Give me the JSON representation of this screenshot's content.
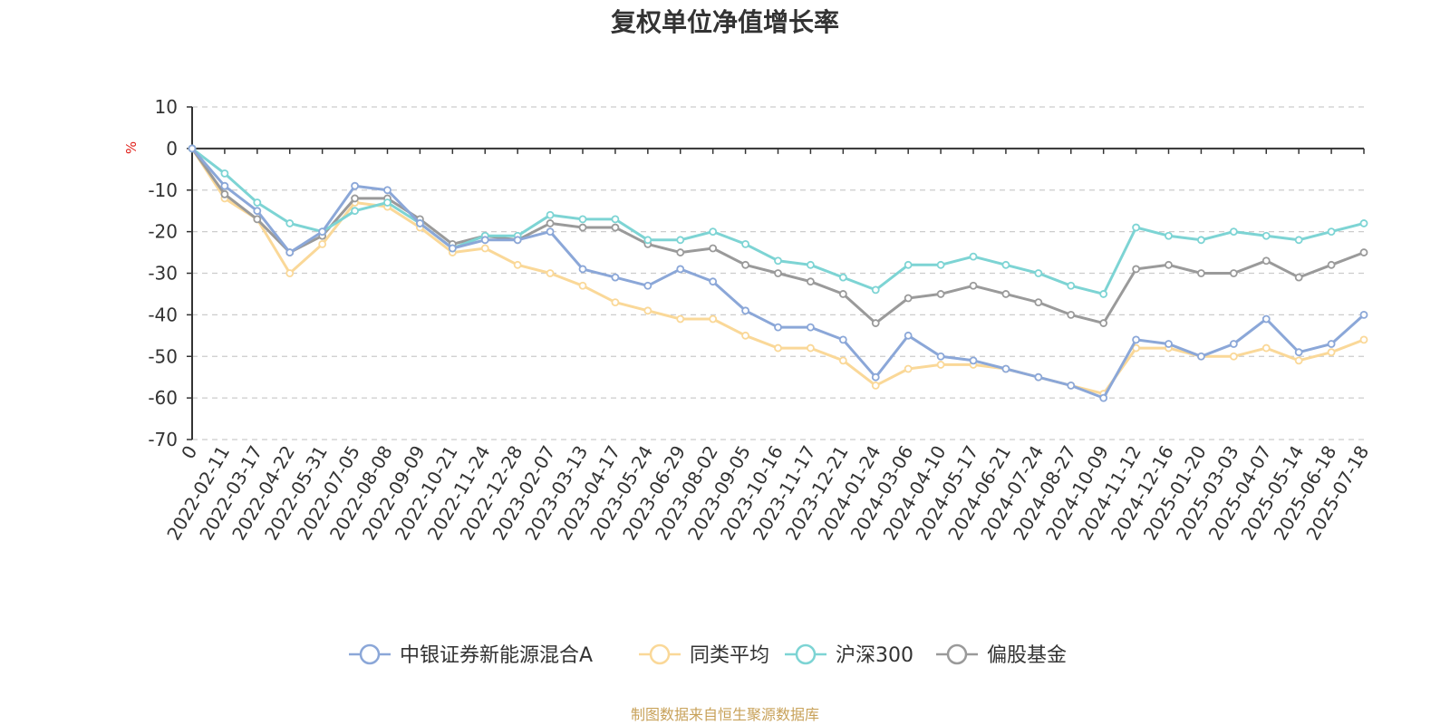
{
  "colors": {
    "fund": "#8ba7d8",
    "category_avg": "#fad898",
    "hs300": "#7dd4d4",
    "equity_fund": "#9a9a9a",
    "axis": "#333333",
    "grid": "#cccccc",
    "unit": "#e0201a",
    "source": "#c8a25a"
  },
  "source_note": "制图数据来自恒生聚源数据库",
  "chart_data": {
    "type": "line",
    "title": "复权单位净值增长率",
    "ylabel": "%",
    "ylim": [
      -70,
      10
    ],
    "yticks": [
      10,
      0,
      -10,
      -20,
      -30,
      -40,
      -50,
      -60,
      -70
    ],
    "grid": true,
    "legend_position": "bottom",
    "x_ticks": [
      "0",
      "2022-02-11",
      "2022-03-17",
      "2022-04-22",
      "2022-05-31",
      "2022-07-05",
      "2022-08-08",
      "2022-09-09",
      "2022-10-21",
      "2022-11-24",
      "2022-12-28",
      "2023-02-07",
      "2023-03-13",
      "2023-04-17",
      "2023-05-24",
      "2023-06-29",
      "2023-08-02",
      "2023-09-05",
      "2023-10-16",
      "2023-11-17",
      "2023-12-21",
      "2024-01-24",
      "2024-03-06",
      "2024-04-10",
      "2024-05-17",
      "2024-06-21",
      "2024-07-24",
      "2024-08-27",
      "2024-10-09",
      "2024-11-12",
      "2024-12-16",
      "2025-01-20",
      "2025-03-03",
      "2025-04-07",
      "2025-05-14",
      "2025-06-18",
      "2025-07-18"
    ],
    "x_index": [
      0,
      1,
      2,
      3,
      4,
      5,
      6,
      7,
      8,
      9,
      10,
      11,
      12,
      13,
      14,
      15,
      16,
      17,
      18,
      19,
      20,
      21,
      22,
      23,
      24,
      25,
      26,
      27,
      28,
      29,
      30,
      31,
      32,
      33,
      34,
      35,
      36
    ],
    "series": [
      {
        "name": "中银证券新能源混合A",
        "values": [
          0,
          -9,
          -15,
          -25,
          -20,
          -9,
          -10,
          -18,
          -24,
          -22,
          -22,
          -20,
          -29,
          -31,
          -33,
          -29,
          -32,
          -39,
          -43,
          -43,
          -46,
          -55,
          -45,
          -50,
          -51,
          -53,
          -55,
          -57,
          -60,
          -46,
          -47,
          -50,
          -47,
          -41,
          -49,
          -47,
          -40
        ]
      },
      {
        "name": "同类平均",
        "values": [
          0,
          -12,
          -17,
          -30,
          -23,
          -13,
          -14,
          -19,
          -25,
          -24,
          -28,
          -30,
          -33,
          -37,
          -39,
          -41,
          -41,
          -45,
          -48,
          -48,
          -51,
          -57,
          -53,
          -52,
          -52,
          -53,
          -55,
          -57,
          -59,
          -48,
          -48,
          -50,
          -50,
          -48,
          -51,
          -49,
          -46
        ]
      },
      {
        "name": "沪深300",
        "values": [
          0,
          -6,
          -13,
          -18,
          -20,
          -15,
          -13,
          -18,
          -24,
          -21,
          -21,
          -16,
          -17,
          -17,
          -22,
          -22,
          -20,
          -23,
          -27,
          -28,
          -31,
          -34,
          -28,
          -28,
          -26,
          -28,
          -30,
          -33,
          -35,
          -19,
          -21,
          -22,
          -20,
          -21,
          -22,
          -20,
          -18
        ]
      },
      {
        "name": "偏股基金",
        "values": [
          0,
          -11,
          -17,
          -25,
          -21,
          -12,
          -12,
          -17,
          -23,
          -21,
          -22,
          -18,
          -19,
          -19,
          -23,
          -25,
          -24,
          -28,
          -30,
          -32,
          -35,
          -42,
          -36,
          -35,
          -33,
          -35,
          -37,
          -40,
          -42,
          -29,
          -28,
          -30,
          -30,
          -27,
          -31,
          -28,
          -25
        ]
      }
    ]
  }
}
